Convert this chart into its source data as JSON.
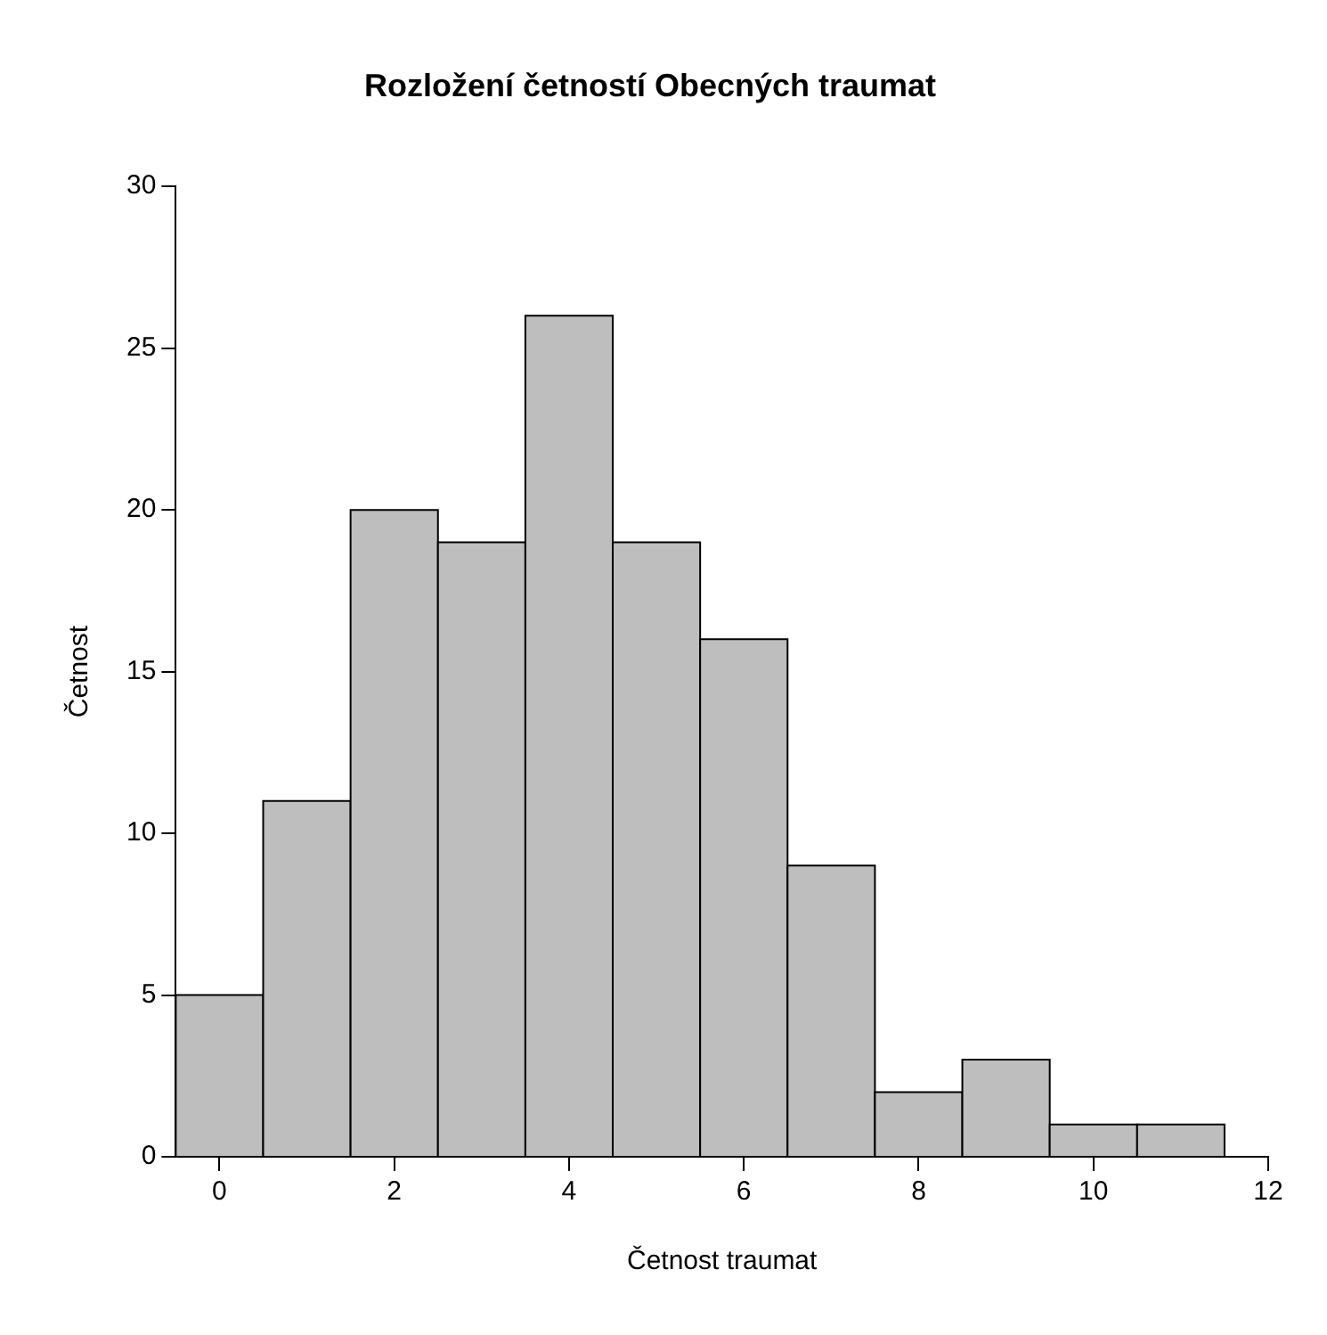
{
  "chart_data": {
    "type": "histogram",
    "title": "Rozložení četností Obecných traumat",
    "xlabel": "Četnost traumat",
    "ylabel": "Četnost",
    "bins": [
      -0.5,
      0.5,
      1.5,
      2.5,
      3.5,
      4.5,
      5.5,
      6.5,
      7.5,
      8.5,
      9.5,
      10.5,
      11.5
    ],
    "values": [
      5,
      11,
      20,
      19,
      26,
      19,
      16,
      9,
      2,
      3,
      1,
      1
    ],
    "color": "#bebebe",
    "xlim": [
      -0.5,
      12
    ],
    "xticks": [
      0,
      2,
      4,
      6,
      8,
      10,
      12
    ],
    "ylim": [
      0,
      30
    ],
    "yticks": [
      0,
      5,
      10,
      15,
      20,
      25,
      30
    ],
    "grid": false,
    "legend": false
  }
}
